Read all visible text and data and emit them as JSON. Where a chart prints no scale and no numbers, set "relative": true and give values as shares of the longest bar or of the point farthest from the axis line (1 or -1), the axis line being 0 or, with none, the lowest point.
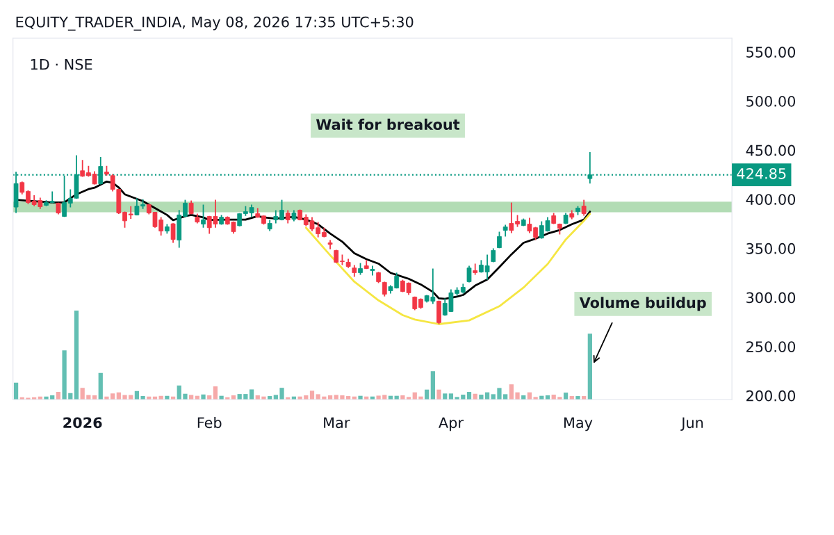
{
  "chart_data": [
    {
      "type": "candlestick",
      "title": "EQUITY_TRADER_INDIA, May 08, 2026 17:35 UTC+5:30",
      "subtitle": "1D · NSE",
      "categories": [
        null,
        null,
        null,
        null,
        null,
        null,
        null,
        null,
        null,
        null,
        null,
        "2026",
        null,
        null,
        null,
        null,
        null,
        null,
        null,
        null,
        null,
        null,
        null,
        null,
        null,
        null,
        null,
        null,
        null,
        null,
        null,
        null,
        "Feb",
        null,
        null,
        null,
        null,
        null,
        null,
        null,
        null,
        null,
        null,
        null,
        null,
        null,
        null,
        null,
        null,
        null,
        null,
        null,
        null,
        "Mar",
        null,
        null,
        null,
        null,
        null,
        null,
        null,
        null,
        null,
        null,
        null,
        null,
        null,
        null,
        null,
        null,
        null,
        null,
        "Apr",
        null,
        null,
        null,
        null,
        null,
        null,
        null,
        null,
        null,
        null,
        null,
        null,
        null,
        null,
        null,
        null,
        null,
        null,
        null,
        null,
        "May",
        null,
        null,
        null,
        null,
        null,
        null,
        null,
        null,
        null,
        null,
        null,
        null,
        null,
        null,
        null,
        null,
        null,
        null,
        "Jun",
        null,
        null,
        null,
        null,
        null,
        null
      ],
      "ohlc": [
        [
          392,
          428,
          386,
          416
        ],
        [
          417,
          418,
          405,
          407
        ],
        [
          408,
          409,
          395,
          396.6
        ],
        [
          398,
          404,
          393,
          394.5
        ],
        [
          398.7,
          401.5,
          390,
          392.4
        ],
        [
          393.8,
          399,
          393,
          396.6
        ],
        [
          396.6,
          408,
          396,
          398
        ],
        [
          396,
          396.5,
          384.6,
          386
        ],
        [
          382.5,
          424,
          382,
          396.6
        ],
        [
          396,
          410,
          391.6,
          401
        ],
        [
          401,
          444.7,
          400.5,
          425
        ],
        [
          429,
          440,
          422.8,
          423.5
        ],
        [
          427,
          434,
          423,
          424
        ],
        [
          425.6,
          428.4,
          415,
          415.5
        ],
        [
          415.7,
          443,
          415,
          433.4
        ],
        [
          427.7,
          434,
          424,
          425.6
        ],
        [
          424,
          425.6,
          408,
          410
        ],
        [
          410,
          410.5,
          385,
          386
        ],
        [
          386.7,
          387.4,
          371,
          378
        ],
        [
          385,
          393,
          380,
          384
        ],
        [
          384,
          401,
          383.5,
          393
        ],
        [
          393,
          400,
          390,
          394.5
        ],
        [
          394.5,
          395,
          384.6,
          386
        ],
        [
          386.7,
          387,
          371,
          372
        ],
        [
          379,
          381.7,
          363,
          367.6
        ],
        [
          367.6,
          374.7,
          365,
          372
        ],
        [
          375,
          375.5,
          355.6,
          359
        ],
        [
          358.4,
          389,
          350.6,
          384
        ],
        [
          382.5,
          399.4,
          381.7,
          396
        ],
        [
          396,
          398.7,
          384.6,
          385.3
        ],
        [
          381.7,
          385.3,
          375.4,
          376.8
        ],
        [
          374.7,
          394.5,
          371,
          379
        ],
        [
          382.5,
          383,
          364.8,
          371
        ],
        [
          382.5,
          399.4,
          371,
          374.7
        ],
        [
          374.7,
          384,
          374,
          381.7
        ],
        [
          381.7,
          382.5,
          374,
          374.7
        ],
        [
          376.8,
          377.3,
          365,
          367
        ],
        [
          373,
          385.8,
          372.5,
          385.3
        ],
        [
          385.3,
          393,
          383,
          387.4
        ],
        [
          386,
          394.5,
          381.7,
          391.6
        ],
        [
          385.3,
          391,
          381.2,
          381.7
        ],
        [
          383,
          383.5,
          374.2,
          375.4
        ],
        [
          369.7,
          379,
          367.6,
          375.4
        ],
        [
          379,
          388.8,
          375.4,
          382.5
        ],
        [
          379,
          399.4,
          378.5,
          388.8
        ],
        [
          386,
          388.8,
          375.4,
          379
        ],
        [
          379.6,
          388.8,
          377.5,
          386
        ],
        [
          388.8,
          389.5,
          378.5,
          379
        ],
        [
          381.7,
          384.6,
          372.5,
          374
        ],
        [
          378,
          381.7,
          367.6,
          369.7
        ],
        [
          371,
          376.8,
          361.2,
          364.8
        ],
        [
          366.2,
          371,
          361.2,
          362
        ],
        [
          355.6,
          358.4,
          349,
          354
        ],
        [
          347.8,
          348.5,
          335,
          335.8
        ],
        [
          337,
          343.6,
          333,
          336.5
        ],
        [
          335.8,
          339.3,
          330,
          331.5
        ],
        [
          330,
          333,
          321,
          325.2
        ],
        [
          325.2,
          335,
          323,
          329.4
        ],
        [
          332.2,
          338,
          328.9,
          329.4
        ],
        [
          327.3,
          332.2,
          322.4,
          328.7
        ],
        [
          325.2,
          326,
          314.6,
          316
        ],
        [
          315.3,
          316,
          301,
          303.3
        ],
        [
          306.8,
          312.4,
          304,
          311
        ],
        [
          309.6,
          325.2,
          309.1,
          321.6
        ],
        [
          316.7,
          318,
          305.4,
          306
        ],
        [
          314.6,
          315.3,
          302.5,
          304.7
        ],
        [
          300.4,
          300.9,
          287,
          288.4
        ],
        [
          298.3,
          299,
          288.4,
          289.8
        ],
        [
          296.2,
          302.5,
          294.8,
          301.8
        ],
        [
          296.2,
          329.4,
          293.4,
          300.4
        ],
        [
          296.2,
          296.7,
          272.8,
          274.3
        ],
        [
          282,
          299,
          281.3,
          294
        ],
        [
          285.6,
          308.2,
          285.1,
          304.7
        ],
        [
          304,
          310.3,
          301.8,
          307.5
        ],
        [
          305.4,
          313.9,
          304,
          310.3
        ],
        [
          316,
          332.2,
          315.3,
          330
        ],
        [
          327.3,
          334.4,
          323,
          325.2
        ],
        [
          325.9,
          338,
          325.2,
          333
        ],
        [
          325.9,
          343.6,
          318,
          332.2
        ],
        [
          336.5,
          350,
          335.8,
          347.8
        ],
        [
          350.6,
          366.9,
          350.1,
          362
        ],
        [
          368.3,
          374,
          362,
          371.8
        ],
        [
          375.4,
          396.6,
          365.5,
          368.3
        ],
        [
          377.5,
          383.9,
          371.8,
          374.7
        ],
        [
          373.2,
          380.3,
          372.7,
          379
        ],
        [
          374.7,
          381,
          365.5,
          367.6
        ],
        [
          371,
          371.8,
          358.4,
          361.2
        ],
        [
          360.5,
          377.5,
          359.8,
          373.2
        ],
        [
          367.6,
          381.7,
          367.1,
          378.2
        ],
        [
          383.2,
          386,
          374.7,
          375.4
        ],
        [
          374.7,
          375.2,
          364.1,
          370.4
        ],
        [
          375.4,
          386,
          374.7,
          383.9
        ],
        [
          385.3,
          388.8,
          379.6,
          381.7
        ],
        [
          387.4,
          393,
          383.9,
          391
        ],
        [
          393,
          399.4,
          383.2,
          385.3
        ],
        [
          421,
          448,
          416,
          424.85
        ],
        null,
        null,
        null,
        null,
        null,
        null,
        null,
        null,
        null,
        null,
        null,
        null,
        null,
        null,
        null,
        null,
        null,
        null,
        null,
        null,
        null,
        null,
        null
      ],
      "colors": [
        "#089981",
        "#f23645",
        "#f23645",
        "#f23645",
        "#f23645",
        "#089981",
        "#089981",
        "#f23645",
        "#089981",
        "#089981",
        "#089981",
        "#f23645",
        "#f23645",
        "#f23645",
        "#089981",
        "#f23645",
        "#f23645",
        "#f23645",
        "#f23645",
        "#f23645",
        "#089981",
        "#089981",
        "#f23645",
        "#f23645",
        "#f23645",
        "#089981",
        "#f23645",
        "#089981",
        "#089981",
        "#f23645",
        "#f23645",
        "#089981",
        "#f23645",
        "#f23645",
        "#089981",
        "#f23645",
        "#f23645",
        "#089981",
        "#089981",
        "#089981",
        "#f23645",
        "#f23645",
        "#089981",
        "#089981",
        "#089981",
        "#f23645",
        "#089981",
        "#f23645",
        "#f23645",
        "#f23645",
        "#f23645",
        "#f23645",
        "#f23645",
        "#f23645",
        "#f23645",
        "#f23645",
        "#f23645",
        "#089981",
        "#f23645",
        "#089981",
        "#f23645",
        "#f23645",
        "#089981",
        "#089981",
        "#f23645",
        "#f23645",
        "#f23645",
        "#f23645",
        "#089981",
        "#089981",
        "#f23645",
        "#089981",
        "#089981",
        "#089981",
        "#089981",
        "#089981",
        "#f23645",
        "#089981",
        "#089981",
        "#089981",
        "#089981",
        "#089981",
        "#f23645",
        "#f23645",
        "#089981",
        "#f23645",
        "#f23645",
        "#089981",
        "#089981",
        "#f23645",
        "#f23645",
        "#089981",
        "#f23645",
        "#089981",
        "#f23645",
        "#089981",
        null,
        null,
        null,
        null,
        null,
        null,
        null,
        null,
        null,
        null,
        null,
        null,
        null,
        null,
        null,
        null,
        null,
        null,
        null,
        null,
        null,
        null,
        null
      ],
      "series": [
        {
          "type": "line",
          "color": "#000000",
          "values": [
            399.4,
            null,
            null,
            398,
            null,
            null,
            396.8,
            null,
            396.8,
            null,
            405,
            null,
            410.3,
            411.7,
            null,
            418,
            416.7,
            412,
            405,
            null,
            400.4,
            398,
            null,
            391,
            null,
            384,
            378.7,
            null,
            382.7,
            384,
            null,
            381.5,
            378.8,
            null,
            null,
            379.2,
            null,
            null,
            379.2,
            null,
            382.7,
            381.5,
            null,
            380.3,
            null,
            null,
            382,
            null,
            379.2,
            null,
            374.5,
            null,
            365,
            null,
            356.8,
            null,
            345,
            null,
            339,
            null,
            334.4,
            null,
            325,
            323,
            null,
            319,
            null,
            313.2,
            null,
            305.6,
            299,
            298.5,
            null,
            300.9,
            302.5,
            null,
            312,
            null,
            318.3,
            null,
            330.8,
            null,
            343.8,
            null,
            355.6,
            null,
            359.8,
            null,
            365,
            null,
            368.6,
            null,
            374.5,
            null,
            379.2,
            387.4,
            null,
            null,
            null,
            null,
            null,
            null,
            null,
            null,
            null,
            null,
            null,
            null,
            null,
            null,
            null,
            null,
            null,
            null,
            null,
            null,
            null,
            null,
            null
          ]
        },
        {
          "type": "line",
          "color": "#f5e642",
          "values": [
            null,
            null,
            null,
            null,
            null,
            null,
            null,
            null,
            null,
            null,
            null,
            null,
            null,
            null,
            null,
            null,
            null,
            null,
            null,
            null,
            null,
            null,
            null,
            null,
            null,
            null,
            null,
            null,
            null,
            null,
            null,
            null,
            null,
            null,
            null,
            null,
            null,
            null,
            null,
            null,
            null,
            null,
            null,
            null,
            null,
            null,
            null,
            null,
            371,
            null,
            null,
            null,
            343,
            null,
            null,
            null,
            316,
            null,
            null,
            null,
            297,
            null,
            null,
            null,
            282,
            null,
            277.5,
            null,
            null,
            null,
            272.8,
            null,
            null,
            null,
            null,
            276.6,
            null,
            null,
            null,
            null,
            291,
            null,
            null,
            null,
            310,
            null,
            null,
            null,
            334,
            null,
            null,
            359,
            null,
            null,
            378,
            385,
            null,
            null,
            null,
            null,
            null,
            null,
            null,
            null,
            null,
            null,
            null,
            null,
            null,
            null,
            null,
            null,
            null,
            null,
            null,
            null,
            null,
            null,
            null
          ]
        }
      ],
      "ylim": [
        196,
        564
      ],
      "yticks": [
        {
          "value": 200,
          "label": "200.00"
        },
        {
          "value": 250,
          "label": "250.00"
        },
        {
          "value": 300,
          "label": "300.00"
        },
        {
          "value": 350,
          "label": "350.00"
        },
        {
          "value": 400,
          "label": "400.00"
        },
        {
          "value": 450,
          "label": "450.00"
        },
        {
          "value": 500,
          "label": "500.00"
        },
        {
          "value": 550,
          "label": "550.00"
        }
      ],
      "bands": [
        {
          "axis": "y",
          "from": 386.8,
          "to": 397.5,
          "color": "#a5d6a7"
        }
      ],
      "ref_lines": [
        {
          "axis": "y",
          "value": 424.85,
          "label": "424.85",
          "color": "#089981",
          "line_style": "dotted"
        }
      ],
      "annotations": [
        "Wait for breakout"
      ],
      "grid": false
    },
    {
      "type": "bar",
      "relative": true,
      "categories": [
        null,
        null,
        null,
        null,
        null,
        null,
        null,
        null,
        null,
        null,
        null,
        null,
        null,
        null,
        null,
        null,
        null,
        null,
        null,
        null,
        null,
        null,
        null,
        null,
        null,
        null,
        null,
        null,
        null,
        null,
        null,
        null,
        null,
        null,
        null,
        null,
        null,
        null,
        null,
        null,
        null,
        null,
        null,
        null,
        null,
        null,
        null,
        null,
        null,
        null,
        null,
        null,
        null,
        null,
        null,
        null,
        null,
        null,
        null,
        null,
        null,
        null,
        null,
        null,
        null,
        null,
        null,
        null,
        null,
        null,
        null,
        null,
        null,
        null,
        null,
        null,
        null,
        null,
        null,
        null,
        null,
        null,
        null,
        null,
        null,
        null,
        null,
        null,
        null,
        null,
        null,
        null,
        null,
        null,
        null,
        null,
        null,
        null,
        null,
        null,
        null,
        null,
        null,
        null,
        null,
        null,
        null,
        null,
        null,
        null,
        null,
        null,
        null,
        null,
        null,
        null,
        null,
        null,
        null
      ],
      "values": [
        0.19,
        0.026,
        0.02,
        0.026,
        0.034,
        0.034,
        0.047,
        0.086,
        0.553,
        0.073,
        1,
        0.132,
        0.052,
        0.047,
        0.299,
        0.034,
        0.068,
        0.081,
        0.052,
        0.052,
        0.096,
        0.039,
        0.034,
        0.034,
        0.042,
        0.042,
        0.034,
        0.158,
        0.065,
        0.052,
        0.042,
        0.057,
        0.047,
        0.148,
        0.042,
        0.026,
        0.047,
        0.062,
        0.062,
        0.114,
        0.047,
        0.034,
        0.039,
        0.052,
        0.132,
        0.026,
        0.034,
        0.034,
        0.047,
        0.099,
        0.06,
        0.034,
        0.047,
        0.052,
        0.047,
        0.039,
        0.034,
        0.042,
        0.034,
        0.034,
        0.044,
        0.052,
        0.042,
        0.042,
        0.047,
        0.029,
        0.081,
        0.034,
        0.112,
        0.319,
        0.112,
        0.068,
        0.068,
        0.029,
        0.055,
        0.086,
        0.065,
        0.055,
        0.081,
        0.06,
        0.13,
        0.06,
        0.171,
        0.081,
        0.047,
        0.081,
        0.029,
        0.042,
        0.047,
        0.055,
        0.029,
        0.078,
        0.039,
        0.039,
        0.039,
        0.74,
        null,
        null,
        null,
        null,
        null,
        null,
        null,
        null,
        null,
        null,
        null,
        null,
        null,
        null,
        null,
        null,
        null,
        null,
        null,
        null,
        null,
        null,
        null
      ],
      "colors": [
        "#63bfb3",
        "#f6a9a9",
        "#f6a9a9",
        "#f6a9a9",
        "#f6a9a9",
        "#63bfb3",
        "#63bfb3",
        "#f6a9a9",
        "#63bfb3",
        "#63bfb3",
        "#63bfb3",
        "#f6a9a9",
        "#f6a9a9",
        "#f6a9a9",
        "#63bfb3",
        "#f6a9a9",
        "#f6a9a9",
        "#f6a9a9",
        "#f6a9a9",
        "#f6a9a9",
        "#63bfb3",
        "#63bfb3",
        "#f6a9a9",
        "#f6a9a9",
        "#f6a9a9",
        "#63bfb3",
        "#f6a9a9",
        "#63bfb3",
        "#63bfb3",
        "#f6a9a9",
        "#f6a9a9",
        "#63bfb3",
        "#f6a9a9",
        "#f6a9a9",
        "#63bfb3",
        "#f6a9a9",
        "#f6a9a9",
        "#63bfb3",
        "#63bfb3",
        "#63bfb3",
        "#f6a9a9",
        "#f6a9a9",
        "#63bfb3",
        "#63bfb3",
        "#63bfb3",
        "#f6a9a9",
        "#63bfb3",
        "#f6a9a9",
        "#f6a9a9",
        "#f6a9a9",
        "#f6a9a9",
        "#f6a9a9",
        "#f6a9a9",
        "#f6a9a9",
        "#f6a9a9",
        "#f6a9a9",
        "#f6a9a9",
        "#63bfb3",
        "#f6a9a9",
        "#63bfb3",
        "#f6a9a9",
        "#f6a9a9",
        "#63bfb3",
        "#63bfb3",
        "#f6a9a9",
        "#f6a9a9",
        "#f6a9a9",
        "#f6a9a9",
        "#63bfb3",
        "#63bfb3",
        "#f6a9a9",
        "#63bfb3",
        "#63bfb3",
        "#63bfb3",
        "#63bfb3",
        "#63bfb3",
        "#f6a9a9",
        "#63bfb3",
        "#63bfb3",
        "#63bfb3",
        "#63bfb3",
        "#63bfb3",
        "#f6a9a9",
        "#f6a9a9",
        "#63bfb3",
        "#f6a9a9",
        "#f6a9a9",
        "#63bfb3",
        "#63bfb3",
        "#f6a9a9",
        "#f6a9a9",
        "#63bfb3",
        "#f6a9a9",
        "#63bfb3",
        "#f6a9a9",
        "#63bfb3",
        null,
        null,
        null,
        null,
        null,
        null,
        null,
        null,
        null,
        null,
        null,
        null,
        null,
        null,
        null,
        null,
        null,
        null,
        null,
        null,
        null,
        null,
        null
      ],
      "annotations": [
        "Volume buildup"
      ]
    }
  ]
}
